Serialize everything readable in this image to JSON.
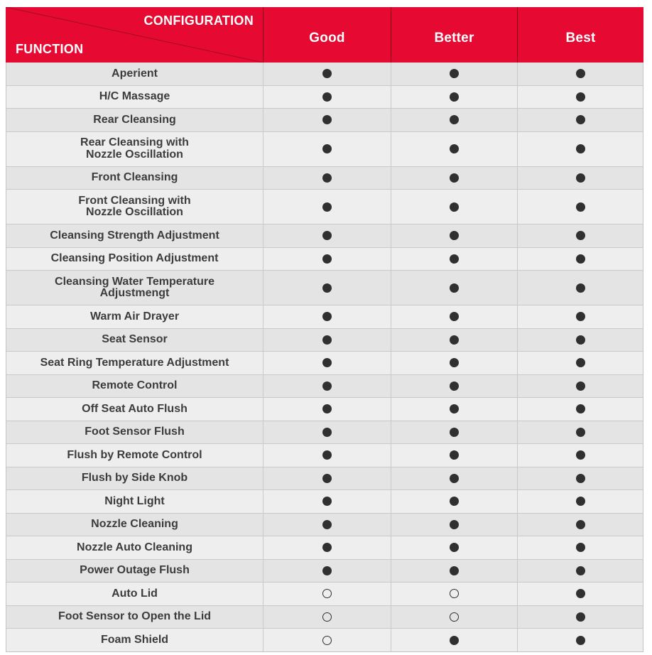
{
  "table": {
    "corner": {
      "top_label": "CONFIGURATION",
      "bottom_label": "FUNCTION"
    },
    "columns": [
      "Good",
      "Better",
      "Best"
    ],
    "symbols": {
      "filled": "●",
      "open": "○"
    },
    "rows": [
      {
        "label": "Aperient",
        "values": [
          "filled",
          "filled",
          "filled"
        ]
      },
      {
        "label": "H/C Massage",
        "values": [
          "filled",
          "filled",
          "filled"
        ]
      },
      {
        "label": "Rear Cleansing",
        "values": [
          "filled",
          "filled",
          "filled"
        ]
      },
      {
        "label": "Rear Cleansing with\nNozzle Oscillation",
        "values": [
          "filled",
          "filled",
          "filled"
        ]
      },
      {
        "label": "Front Cleansing",
        "values": [
          "filled",
          "filled",
          "filled"
        ]
      },
      {
        "label": "Front Cleansing with\nNozzle Oscillation",
        "values": [
          "filled",
          "filled",
          "filled"
        ]
      },
      {
        "label": "Cleansing Strength Adjustment",
        "values": [
          "filled",
          "filled",
          "filled"
        ]
      },
      {
        "label": "Cleansing Position Adjustment",
        "values": [
          "filled",
          "filled",
          "filled"
        ]
      },
      {
        "label": "Cleansing Water Temperature\nAdjustmengt",
        "values": [
          "filled",
          "filled",
          "filled"
        ]
      },
      {
        "label": "Warm Air Drayer",
        "values": [
          "filled",
          "filled",
          "filled"
        ]
      },
      {
        "label": "Seat Sensor",
        "values": [
          "filled",
          "filled",
          "filled"
        ]
      },
      {
        "label": "Seat Ring Temperature Adjustment",
        "values": [
          "filled",
          "filled",
          "filled"
        ]
      },
      {
        "label": "Remote Control",
        "values": [
          "filled",
          "filled",
          "filled"
        ]
      },
      {
        "label": "Off Seat Auto Flush",
        "values": [
          "filled",
          "filled",
          "filled"
        ]
      },
      {
        "label": "Foot Sensor Flush",
        "values": [
          "filled",
          "filled",
          "filled"
        ]
      },
      {
        "label": "Flush by Remote Control",
        "values": [
          "filled",
          "filled",
          "filled"
        ]
      },
      {
        "label": "Flush by Side Knob",
        "values": [
          "filled",
          "filled",
          "filled"
        ]
      },
      {
        "label": "Night Light",
        "values": [
          "filled",
          "filled",
          "filled"
        ]
      },
      {
        "label": "Nozzle Cleaning",
        "values": [
          "filled",
          "filled",
          "filled"
        ]
      },
      {
        "label": "Nozzle Auto Cleaning",
        "values": [
          "filled",
          "filled",
          "filled"
        ]
      },
      {
        "label": "Power Outage Flush",
        "values": [
          "filled",
          "filled",
          "filled"
        ]
      },
      {
        "label": "Auto Lid",
        "values": [
          "open",
          "open",
          "filled"
        ]
      },
      {
        "label": "Foot Sensor to Open the Lid",
        "values": [
          "open",
          "open",
          "filled"
        ]
      },
      {
        "label": "Foam Shield",
        "values": [
          "open",
          "filled",
          "filled"
        ]
      }
    ]
  },
  "colors": {
    "header_bg": "#E60A33",
    "header_text": "#FFFFFF",
    "row_dark": "#E4E4E4",
    "row_light": "#EEEEEE",
    "grid_line": "#C9C9C9",
    "dot": "#303030",
    "label_text": "#3C3C3C"
  },
  "chart_data": {
    "type": "table",
    "title": "",
    "columns": [
      "FUNCTION \\ CONFIGURATION",
      "Good",
      "Better",
      "Best"
    ],
    "rows": [
      [
        "Aperient",
        "●",
        "●",
        "●"
      ],
      [
        "H/C Massage",
        "●",
        "●",
        "●"
      ],
      [
        "Rear Cleansing",
        "●",
        "●",
        "●"
      ],
      [
        "Rear Cleansing with Nozzle Oscillation",
        "●",
        "●",
        "●"
      ],
      [
        "Front Cleansing",
        "●",
        "●",
        "●"
      ],
      [
        "Front Cleansing with Nozzle Oscillation",
        "●",
        "●",
        "●"
      ],
      [
        "Cleansing Strength Adjustment",
        "●",
        "●",
        "●"
      ],
      [
        "Cleansing Position Adjustment",
        "●",
        "●",
        "●"
      ],
      [
        "Cleansing Water Temperature Adjustmengt",
        "●",
        "●",
        "●"
      ],
      [
        "Warm Air Drayer",
        "●",
        "●",
        "●"
      ],
      [
        "Seat Sensor",
        "●",
        "●",
        "●"
      ],
      [
        "Seat Ring Temperature Adjustment",
        "●",
        "●",
        "●"
      ],
      [
        "Remote Control",
        "●",
        "●",
        "●"
      ],
      [
        "Off Seat Auto Flush",
        "●",
        "●",
        "●"
      ],
      [
        "Foot Sensor Flush",
        "●",
        "●",
        "●"
      ],
      [
        "Flush by Remote Control",
        "●",
        "●",
        "●"
      ],
      [
        "Flush by Side Knob",
        "●",
        "●",
        "●"
      ],
      [
        "Night Light",
        "●",
        "●",
        "●"
      ],
      [
        "Nozzle Cleaning",
        "●",
        "●",
        "●"
      ],
      [
        "Nozzle Auto Cleaning",
        "●",
        "●",
        "●"
      ],
      [
        "Power Outage Flush",
        "●",
        "●",
        "●"
      ],
      [
        "Auto Lid",
        "○",
        "○",
        "●"
      ],
      [
        "Foot Sensor to Open the Lid",
        "○",
        "○",
        "●"
      ],
      [
        "Foam Shield",
        "○",
        "●",
        "●"
      ]
    ]
  }
}
